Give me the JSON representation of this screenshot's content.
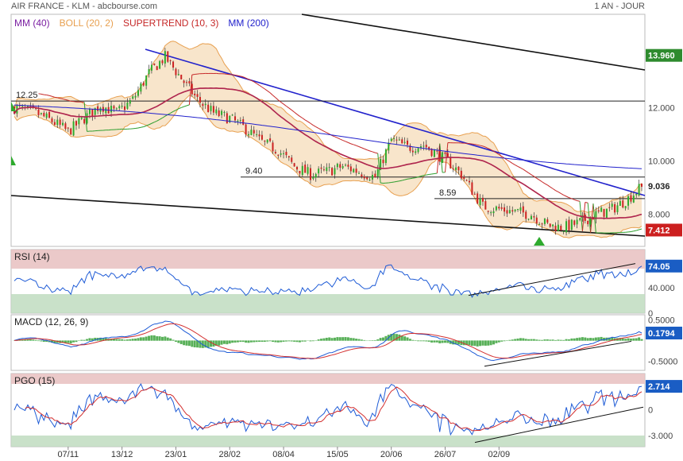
{
  "header": {
    "left": "AIR FRANCE - KLM - abcbourse.com",
    "right": "1 AN - JOUR"
  },
  "colors": {
    "mm40": "#7b1fa2",
    "boll": "#e8a050",
    "bollFill": "#f2cfa0",
    "supertrend_up": "#2e9e2e",
    "supertrend_down": "#c62828",
    "mm200": "#2222cc",
    "candle_up": "#2eaa2e",
    "candle_down": "#cc2222",
    "rsi": "#1e5bd6",
    "macd": "#1e5bd6",
    "signal": "#d32f2f",
    "hist": "#58b058",
    "pgo": "#1e5bd6",
    "pgo_ma": "#d32f2f",
    "zone_red": "#e8c0c0",
    "zone_green": "#c0dcc0"
  },
  "chart_data": [
    {
      "type": "candlestick",
      "legend": [
        {
          "label": "MM (40)",
          "color": "#7b1fa2"
        },
        {
          "label": "BOLL (20, 2)",
          "color": "#e8a050"
        },
        {
          "label": "SUPERTREND (10, 3)",
          "color": "#c62828"
        },
        {
          "label": "MM (200)",
          "color": "#2222cc"
        }
      ],
      "ylim": [
        6.8,
        15.5
      ],
      "yticks": [
        {
          "v": 12,
          "label": "12.000"
        },
        {
          "v": 10,
          "label": "10.000"
        },
        {
          "v": 8,
          "label": "8.000"
        }
      ],
      "last_price": {
        "v": 9.036,
        "label": "9.036"
      },
      "marker_high": {
        "v": 13.96,
        "label": "13.960"
      },
      "marker_low": {
        "v": 7.412,
        "label": "7.412"
      },
      "levels": [
        {
          "v": 12.25,
          "label": "12.25"
        },
        {
          "v": 9.4,
          "label": "9.40"
        },
        {
          "v": 8.59,
          "label": "8.59"
        }
      ],
      "close_anchors": [
        [
          0,
          12.0
        ],
        [
          8,
          11.8
        ],
        [
          14,
          11.5
        ],
        [
          20,
          11.1
        ],
        [
          26,
          11.6
        ],
        [
          32,
          12.1
        ],
        [
          38,
          11.8
        ],
        [
          44,
          12.3
        ],
        [
          50,
          13.3
        ],
        [
          56,
          13.9
        ],
        [
          62,
          13.1
        ],
        [
          68,
          12.3
        ],
        [
          74,
          11.8
        ],
        [
          80,
          11.6
        ],
        [
          86,
          11.2
        ],
        [
          92,
          10.7
        ],
        [
          98,
          10.4
        ],
        [
          104,
          9.8
        ],
        [
          110,
          9.5
        ],
        [
          116,
          9.6
        ],
        [
          122,
          9.8
        ],
        [
          128,
          9.6
        ],
        [
          134,
          9.4
        ],
        [
          140,
          10.8
        ],
        [
          146,
          10.5
        ],
        [
          152,
          10.6
        ],
        [
          158,
          10.2
        ],
        [
          162,
          9.9
        ],
        [
          166,
          9.5
        ],
        [
          170,
          8.9
        ],
        [
          174,
          8.3
        ],
        [
          180,
          8.2
        ],
        [
          186,
          8.1
        ],
        [
          192,
          8.0
        ],
        [
          198,
          7.6
        ],
        [
          204,
          7.5
        ],
        [
          210,
          7.7
        ],
        [
          216,
          8.0
        ],
        [
          222,
          8.2
        ],
        [
          228,
          8.6
        ],
        [
          233,
          9.036
        ]
      ]
    },
    {
      "type": "line",
      "label": "RSI (14)",
      "ylim": [
        0,
        100
      ],
      "yticks": [
        {
          "v": 40,
          "label": "40.000"
        },
        {
          "v": 0,
          "label": "0"
        }
      ],
      "last": {
        "v": 74.05,
        "label": "74.05"
      }
    },
    {
      "type": "line",
      "label": "MACD (12, 26, 9)",
      "ylim": [
        -0.72,
        0.62
      ],
      "yticks": [
        {
          "v": 0.5,
          "label": "0.5000"
        },
        {
          "v": -0.5,
          "label": "-0.5000"
        }
      ],
      "last": {
        "v": 0.1794,
        "label": "0.1794"
      }
    },
    {
      "type": "line",
      "label": "PGO (15)",
      "ylim": [
        -4.3,
        4.2
      ],
      "yticks": [
        {
          "v": 0,
          "label": "0"
        },
        {
          "v": -3,
          "label": "-3.000"
        }
      ],
      "last": {
        "v": 2.714,
        "label": "2.714"
      }
    }
  ],
  "xaxis": {
    "ticks": [
      {
        "i": 20,
        "label": "07/11"
      },
      {
        "i": 40,
        "label": "13/12"
      },
      {
        "i": 60,
        "label": "23/01"
      },
      {
        "i": 80,
        "label": "28/02"
      },
      {
        "i": 100,
        "label": "08/04"
      },
      {
        "i": 120,
        "label": "15/05"
      },
      {
        "i": 140,
        "label": "20/06"
      },
      {
        "i": 160,
        "label": "26/07"
      },
      {
        "i": 180,
        "label": "02/09"
      }
    ]
  }
}
